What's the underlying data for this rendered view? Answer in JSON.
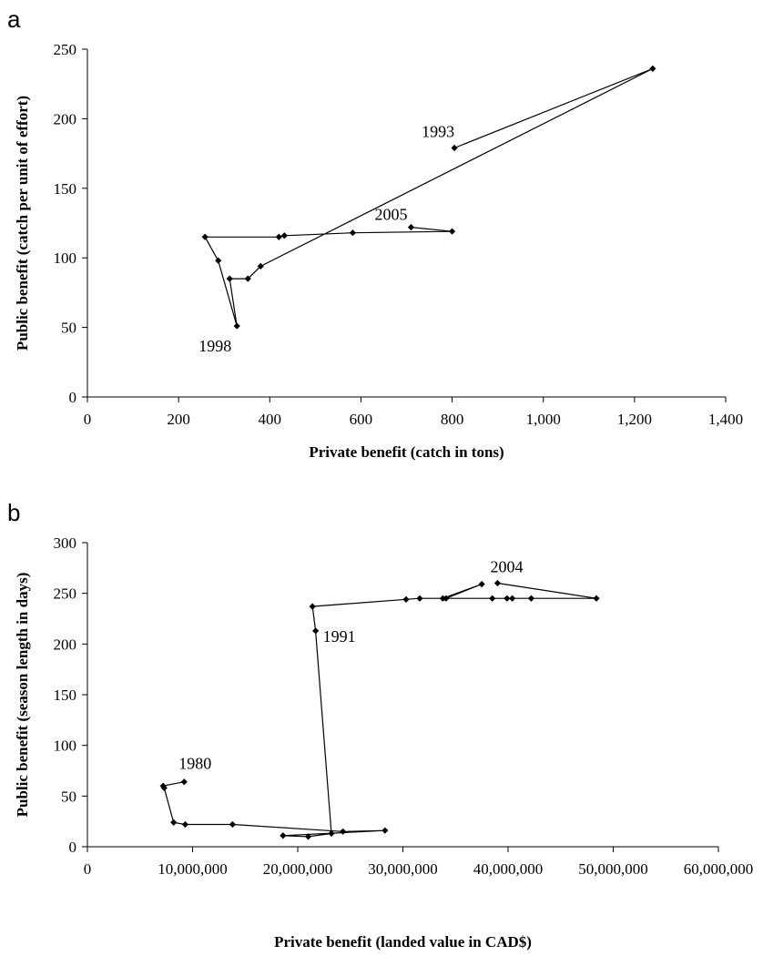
{
  "chart_data": [
    {
      "panel_label": "a",
      "type": "line",
      "marker": "diamond",
      "xlabel": "Private benefit (catch in tons)",
      "ylabel": "Public benefit (catch per unit of effort)",
      "xlim": [
        0,
        1400
      ],
      "ylim": [
        0,
        250
      ],
      "x_ticks": [
        0,
        200,
        400,
        600,
        800,
        1000,
        1200,
        1400
      ],
      "x_tick_labels": [
        "0",
        "200",
        "400",
        "600",
        "800",
        "1,000",
        "1,200",
        "1,400"
      ],
      "y_ticks": [
        0,
        50,
        100,
        150,
        200,
        250
      ],
      "y_tick_labels": [
        "0",
        "50",
        "100",
        "150",
        "200",
        "250"
      ],
      "grid": false,
      "series": [
        {
          "points": [
            [
              805,
              179
            ],
            [
              1240,
              236
            ],
            [
              380,
              94
            ],
            [
              352,
              85
            ],
            [
              312,
              85
            ],
            [
              328,
              51
            ],
            [
              287,
              98
            ],
            [
              258,
              115
            ],
            [
              420,
              115
            ],
            [
              432,
              116
            ],
            [
              582,
              118
            ],
            [
              800,
              119
            ],
            [
              710,
              122
            ]
          ]
        }
      ],
      "annotations": [
        {
          "text": "1993",
          "x": 805,
          "y": 179
        },
        {
          "text": "2005",
          "x": 710,
          "y": 122
        },
        {
          "text": "1998",
          "x": 328,
          "y": 51
        }
      ]
    },
    {
      "panel_label": "b",
      "type": "line",
      "marker": "diamond",
      "xlabel": "Private benefit (landed value in CAD$)",
      "ylabel": "Public benefit (season length in days)",
      "xlim": [
        0,
        60000000
      ],
      "ylim": [
        0,
        300
      ],
      "x_ticks": [
        0,
        10000000,
        20000000,
        30000000,
        40000000,
        50000000,
        60000000
      ],
      "x_tick_labels": [
        "0",
        "10,000,000",
        "20,000,000",
        "30,000,000",
        "40,000,000",
        "50,000,000",
        "60,000,000"
      ],
      "y_ticks": [
        0,
        50,
        100,
        150,
        200,
        250,
        300
      ],
      "y_tick_labels": [
        "0",
        "50",
        "100",
        "150",
        "200",
        "250",
        "300"
      ],
      "grid": false,
      "series": [
        {
          "points": [
            [
              9200000,
              64
            ],
            [
              7200000,
              60
            ],
            [
              7300000,
              58
            ],
            [
              8200000,
              24
            ],
            [
              9300000,
              22
            ],
            [
              13800000,
              22
            ],
            [
              24300000,
              15
            ],
            [
              28300000,
              16
            ],
            [
              18600000,
              11
            ],
            [
              21000000,
              10
            ],
            [
              23200000,
              13
            ],
            [
              21700000,
              213
            ],
            [
              21400000,
              237
            ],
            [
              30300000,
              244
            ],
            [
              31600000,
              245
            ],
            [
              33800000,
              245
            ],
            [
              37500000,
              259
            ],
            [
              34100000,
              245
            ],
            [
              38500000,
              245
            ],
            [
              39900000,
              245
            ],
            [
              40400000,
              245
            ],
            [
              42200000,
              245
            ],
            [
              48400000,
              245
            ],
            [
              39000000,
              260
            ]
          ]
        }
      ],
      "annotations": [
        {
          "text": "1980",
          "x": 9200000,
          "y": 64
        },
        {
          "text": "1991",
          "x": 21700000,
          "y": 213
        },
        {
          "text": "2004",
          "x": 39000000,
          "y": 260
        }
      ]
    }
  ]
}
